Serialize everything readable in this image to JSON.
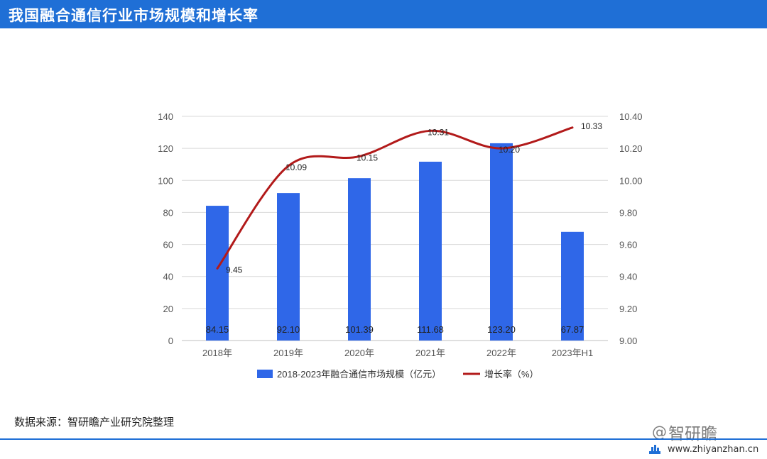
{
  "header": {
    "title": "我国融合通信行业市场规模和增长率"
  },
  "chart_data": {
    "type": "bar",
    "categories": [
      "2018年",
      "2019年",
      "2020年",
      "2021年",
      "2022年",
      "2023年H1"
    ],
    "series": [
      {
        "name": "2018-2023年融合通信市场规模（亿元）",
        "type": "bar",
        "axis": "left",
        "values": [
          84.15,
          92.1,
          101.39,
          111.68,
          123.2,
          67.87
        ],
        "labels": [
          "84.15",
          "92.10",
          "101.39",
          "111.68",
          "123.20",
          "67.87"
        ]
      },
      {
        "name": "增长率（%）",
        "type": "line",
        "axis": "right",
        "values": [
          9.45,
          10.09,
          10.15,
          10.31,
          10.2,
          10.33
        ],
        "labels": [
          "9.45",
          "10.09",
          "10.15",
          "10.31",
          "10.20",
          "10.33"
        ]
      }
    ],
    "left_axis": {
      "ylim": [
        0,
        140
      ],
      "ticks": [
        "0",
        "20",
        "40",
        "60",
        "80",
        "100",
        "120",
        "140"
      ]
    },
    "right_axis": {
      "ylim": [
        9.0,
        10.4
      ],
      "ticks": [
        "9.00",
        "9.20",
        "9.40",
        "9.60",
        "9.80",
        "10.00",
        "10.20",
        "10.40"
      ]
    },
    "grid": true,
    "legend_position": "bottom",
    "colors": {
      "bar": "#2f67e8",
      "line": "#b21a1a",
      "grid": "#d9d9d9"
    }
  },
  "source_note": "数据来源：智研瞻产业研究院整理",
  "brand": {
    "at": "@",
    "name": "智研瞻"
  },
  "website": "www.zhiyanzhan.cn"
}
